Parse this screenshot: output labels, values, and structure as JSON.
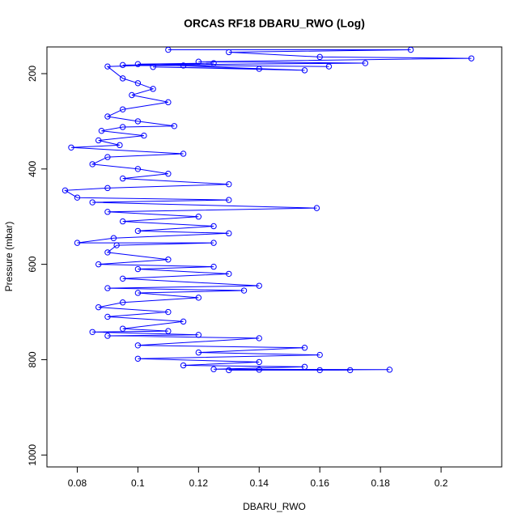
{
  "chart_data": {
    "type": "line",
    "title": "ORCAS RF18 DBARU_RWO (Log)",
    "x_label": "DBARU_RWO",
    "y_label": "Pressure (mbar)",
    "color": "#0000ff",
    "marker": "open-circle",
    "y_reversed": true,
    "xlim": [
      0.07,
      0.22
    ],
    "xticks": [
      0.08,
      0.1,
      0.12,
      0.14,
      0.16,
      0.18,
      0.2
    ],
    "ylim": [
      1025,
      144
    ],
    "yticks": [
      200,
      400,
      600,
      800,
      1000
    ],
    "x": [
      0.11,
      0.19,
      0.13,
      0.16,
      0.21,
      0.12,
      0.175,
      0.095,
      0.163,
      0.115,
      0.14,
      0.105,
      0.155,
      0.1,
      0.125,
      0.09,
      0.095,
      0.1,
      0.105,
      0.098,
      0.11,
      0.095,
      0.09,
      0.1,
      0.112,
      0.095,
      0.088,
      0.102,
      0.087,
      0.094,
      0.078,
      0.115,
      0.09,
      0.085,
      0.1,
      0.11,
      0.095,
      0.13,
      0.09,
      0.076,
      0.08,
      0.13,
      0.085,
      0.159,
      0.09,
      0.12,
      0.095,
      0.125,
      0.1,
      0.13,
      0.092,
      0.08,
      0.125,
      0.093,
      0.09,
      0.11,
      0.087,
      0.125,
      0.1,
      0.13,
      0.095,
      0.14,
      0.09,
      0.135,
      0.1,
      0.12,
      0.095,
      0.087,
      0.11,
      0.09,
      0.115,
      0.095,
      0.11,
      0.085,
      0.12,
      0.09,
      0.14,
      0.1,
      0.155,
      0.12,
      0.16,
      0.1,
      0.14,
      0.115,
      0.155,
      0.125,
      0.183,
      0.13,
      0.17,
      0.14,
      0.16
    ],
    "values": [
      150,
      150,
      155,
      165,
      168,
      175,
      178,
      182,
      185,
      183,
      190,
      186,
      193,
      180,
      178,
      185,
      210,
      220,
      232,
      245,
      260,
      275,
      290,
      300,
      310,
      312,
      320,
      330,
      340,
      350,
      355,
      368,
      375,
      390,
      400,
      410,
      420,
      432,
      440,
      445,
      460,
      465,
      470,
      482,
      490,
      500,
      510,
      520,
      530,
      535,
      545,
      555,
      555,
      560,
      575,
      590,
      600,
      605,
      610,
      620,
      630,
      645,
      650,
      655,
      660,
      670,
      680,
      690,
      700,
      710,
      720,
      735,
      740,
      742,
      748,
      750,
      755,
      770,
      775,
      785,
      790,
      798,
      805,
      812,
      815,
      820,
      821,
      822,
      822,
      821,
      822
    ]
  }
}
